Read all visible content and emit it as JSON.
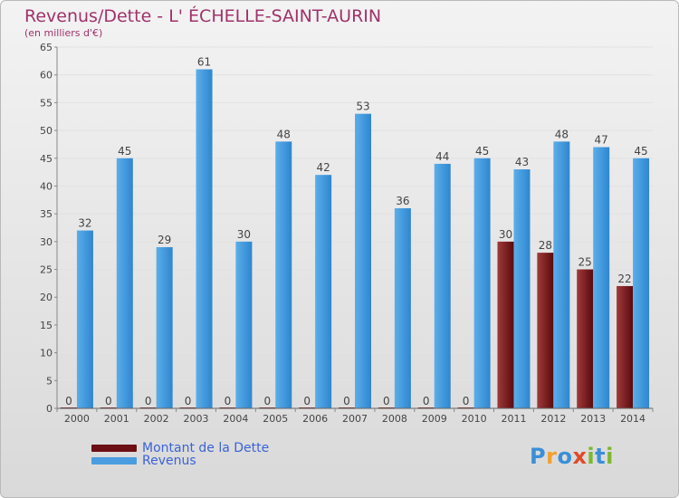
{
  "title": "Revenus/Dette - L' ÉCHELLE-SAINT-AURIN",
  "subtitle": "(en milliers d'€)",
  "legend": [
    {
      "label": "Montant de la Dette",
      "color": "#6b0f14"
    },
    {
      "label": "Revenus",
      "color": "#4a9de0"
    }
  ],
  "logo": {
    "text": "Proxiti",
    "colors": [
      "#3a8fd8",
      "#f2a030",
      "#3a8fd8",
      "#e04a2a",
      "#7cb830",
      "#3a8fd8",
      "#7cb830"
    ]
  },
  "chart_data": {
    "type": "bar",
    "categories": [
      "2000",
      "2001",
      "2002",
      "2003",
      "2004",
      "2005",
      "2006",
      "2007",
      "2008",
      "2009",
      "2010",
      "2011",
      "2012",
      "2013",
      "2014"
    ],
    "series": [
      {
        "name": "Montant de la Dette",
        "values": [
          0,
          0,
          0,
          0,
          0,
          0,
          0,
          0,
          0,
          0,
          0,
          30,
          28,
          25,
          22
        ]
      },
      {
        "name": "Revenus",
        "values": [
          32,
          45,
          29,
          61,
          30,
          48,
          42,
          53,
          36,
          44,
          45,
          43,
          48,
          47,
          45
        ]
      }
    ],
    "ylim": [
      0,
      65
    ],
    "yticks": [
      0,
      5,
      10,
      15,
      20,
      25,
      30,
      35,
      40,
      45,
      50,
      55,
      60,
      65
    ],
    "grid": true,
    "legend_position": "bottom-left"
  }
}
